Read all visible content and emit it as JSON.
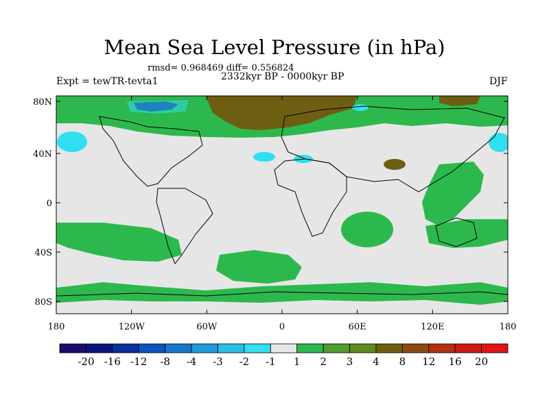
{
  "title": "Mean Sea Level Pressure (in hPa)",
  "stats": "rmsd= 0.968469 diff= 0.556824",
  "period": "2332kyr BP - 0000kyr BP",
  "left_label": "Expt = tewTR-tevta1",
  "right_label": "DJF",
  "y_ticks": [
    "80N",
    "40N",
    "0",
    "40S",
    "80S"
  ],
  "x_ticks": [
    "180",
    "120W",
    "60W",
    "0",
    "60E",
    "120E",
    "180"
  ],
  "colorbar": {
    "labels": [
      "-20",
      "-16",
      "-12",
      "-8",
      "-4",
      "-3",
      "-2",
      "-1",
      "1",
      "2",
      "3",
      "4",
      "8",
      "12",
      "16",
      "20"
    ],
    "colors": [
      "#1d0a6e",
      "#0b157f",
      "#0a2f9e",
      "#0e53c0",
      "#1677cf",
      "#1f9ad9",
      "#2abde4",
      "#30dff0",
      "#e6e6e6",
      "#2db84d",
      "#4f9b2e",
      "#5e8a1f",
      "#6e5e12",
      "#8a4a10",
      "#b42f10",
      "#cf1b12",
      "#e01414"
    ]
  },
  "colors": {
    "background_field": "#e6e6e6",
    "green": "#2db84d",
    "brown": "#6e5e12",
    "cyan": "#30dff0",
    "navy": "#0b157f"
  }
}
